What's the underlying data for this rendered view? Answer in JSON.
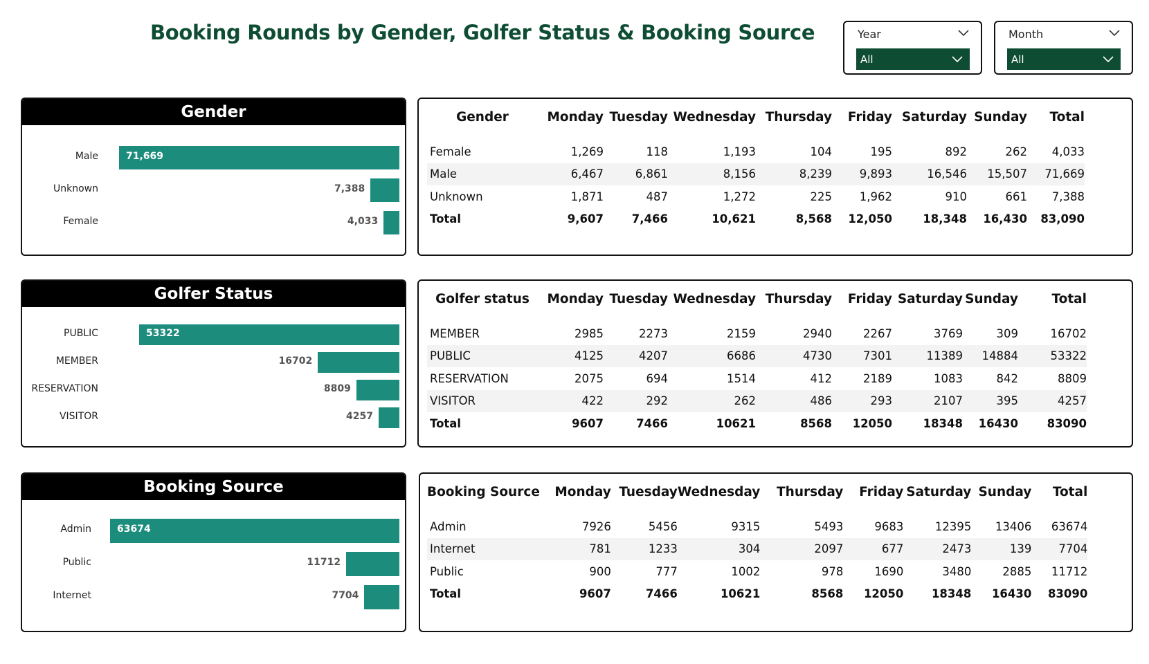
{
  "header": {
    "title": "Booking Rounds by Gender, Golfer Status & Booking Source"
  },
  "slicers": [
    {
      "label": "Year",
      "value": "All"
    },
    {
      "label": "Month",
      "value": "All"
    }
  ],
  "colors": {
    "bar": "#1c8c7c",
    "title": "#0e4d33",
    "slicer_fill": "#0e4d33"
  },
  "icons": {
    "dropdown": "chevron-down-icon"
  },
  "chart_data": [
    {
      "type": "bar",
      "orientation": "horizontal",
      "title": "Gender",
      "categories": [
        "Male",
        "Unknown",
        "Female"
      ],
      "values": [
        71669,
        7388,
        4033
      ],
      "labels": [
        "71,669",
        "7,388",
        "4,033"
      ]
    },
    {
      "type": "bar",
      "orientation": "horizontal",
      "title": "Golfer Status",
      "categories": [
        "PUBLIC",
        "MEMBER",
        "RESERVATION",
        "VISITOR"
      ],
      "values": [
        53322,
        16702,
        8809,
        4257
      ],
      "labels": [
        "53322",
        "16702",
        "8809",
        "4257"
      ]
    },
    {
      "type": "bar",
      "orientation": "horizontal",
      "title": "Booking Source",
      "categories": [
        "Admin",
        "Public",
        "Internet"
      ],
      "values": [
        63674,
        11712,
        7704
      ],
      "labels": [
        "63674",
        "11712",
        "7704"
      ]
    },
    {
      "type": "table",
      "columns": [
        "Gender",
        "Monday",
        "Tuesday",
        "Wednesday",
        "Thursday",
        "Friday",
        "Saturday",
        "Sunday",
        "Total"
      ],
      "rows": [
        [
          "Female",
          "1,269",
          "118",
          "1,193",
          "104",
          "195",
          "892",
          "262",
          "4,033"
        ],
        [
          "Male",
          "6,467",
          "6,861",
          "8,156",
          "8,239",
          "9,893",
          "16,546",
          "15,507",
          "71,669"
        ],
        [
          "Unknown",
          "1,871",
          "487",
          "1,272",
          "225",
          "1,962",
          "910",
          "661",
          "7,388"
        ]
      ],
      "total": [
        "Total",
        "9,607",
        "7,466",
        "10,621",
        "8,568",
        "12,050",
        "18,348",
        "16,430",
        "83,090"
      ]
    },
    {
      "type": "table",
      "columns": [
        "Golfer status",
        "Monday",
        "Tuesday",
        "Wednesday",
        "Thursday",
        "Friday",
        "Saturday",
        "Sunday",
        "Total"
      ],
      "rows": [
        [
          "MEMBER",
          "2985",
          "2273",
          "2159",
          "2940",
          "2267",
          "3769",
          "309",
          "16702"
        ],
        [
          "PUBLIC",
          "4125",
          "4207",
          "6686",
          "4730",
          "7301",
          "11389",
          "14884",
          "53322"
        ],
        [
          "RESERVATION",
          "2075",
          "694",
          "1514",
          "412",
          "2189",
          "1083",
          "842",
          "8809"
        ],
        [
          "VISITOR",
          "422",
          "292",
          "262",
          "486",
          "293",
          "2107",
          "395",
          "4257"
        ]
      ],
      "total": [
        "Total",
        "9607",
        "7466",
        "10621",
        "8568",
        "12050",
        "18348",
        "16430",
        "83090"
      ]
    },
    {
      "type": "table",
      "columns": [
        "Booking Source",
        "Monday",
        "Tuesday",
        "Wednesday",
        "Thursday",
        "Friday",
        "Saturday",
        "Sunday",
        "Total"
      ],
      "rows": [
        [
          "Admin",
          "7926",
          "5456",
          "9315",
          "5493",
          "9683",
          "12395",
          "13406",
          "63674"
        ],
        [
          "Internet",
          "781",
          "1233",
          "304",
          "2097",
          "677",
          "2473",
          "139",
          "7704"
        ],
        [
          "Public",
          "900",
          "777",
          "1002",
          "978",
          "1690",
          "3480",
          "2885",
          "11712"
        ]
      ],
      "total": [
        "Total",
        "9607",
        "7466",
        "10621",
        "8568",
        "12050",
        "18348",
        "16430",
        "83090"
      ]
    }
  ]
}
